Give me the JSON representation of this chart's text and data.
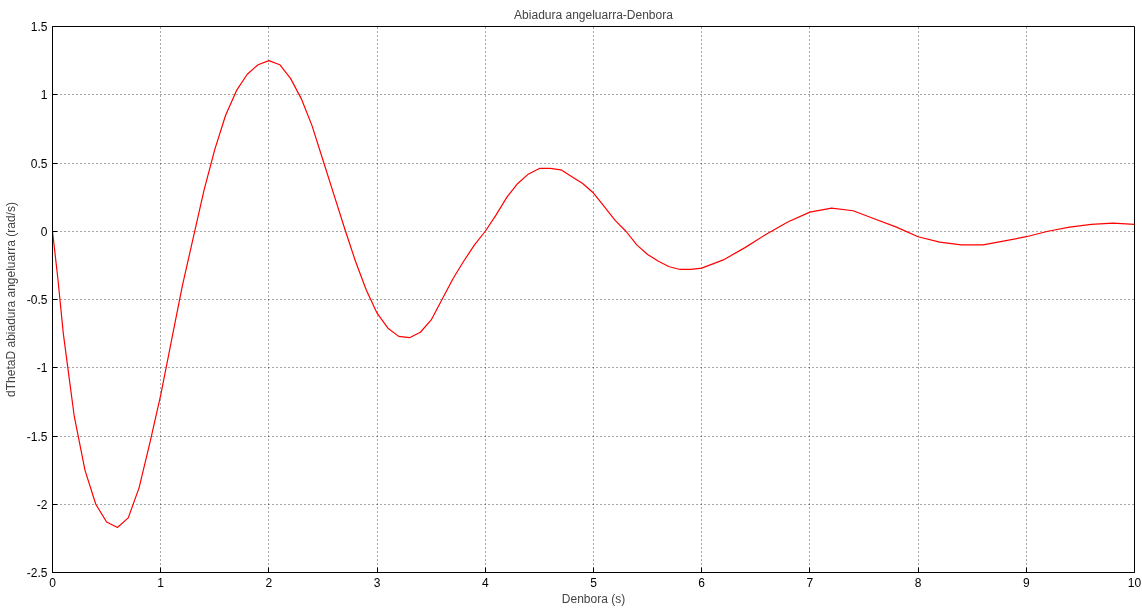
{
  "chart_data": {
    "type": "line",
    "title": "Abiadura angeluarra-Denbora",
    "xlabel": "Denbora (s)",
    "ylabel": "dThetaD abiadura angeluarra (rad/s)",
    "xlim": [
      0,
      10
    ],
    "ylim": [
      -2.5,
      1.5
    ],
    "xticks": [
      0,
      1,
      2,
      3,
      4,
      5,
      6,
      7,
      8,
      9,
      10
    ],
    "yticks": [
      -2.5,
      -2,
      -1.5,
      -1,
      -0.5,
      0,
      0.5,
      1,
      1.5
    ],
    "grid": true,
    "line_style": "solid",
    "marker": "none",
    "series": [
      {
        "color": "#ff0000",
        "x": [
          0,
          0.05,
          0.1,
          0.15,
          0.2,
          0.3,
          0.4,
          0.5,
          0.6,
          0.7,
          0.8,
          0.9,
          1.0,
          1.1,
          1.2,
          1.3,
          1.4,
          1.5,
          1.6,
          1.7,
          1.8,
          1.9,
          2.0,
          2.1,
          2.2,
          2.3,
          2.4,
          2.5,
          2.6,
          2.7,
          2.8,
          2.9,
          3.0,
          3.1,
          3.2,
          3.3,
          3.4,
          3.5,
          3.6,
          3.7,
          3.8,
          3.9,
          4.0,
          4.1,
          4.2,
          4.3,
          4.4,
          4.5,
          4.6,
          4.7,
          4.8,
          4.9,
          5.0,
          5.1,
          5.2,
          5.3,
          5.4,
          5.5,
          5.6,
          5.7,
          5.8,
          5.9,
          6.0,
          6.2,
          6.4,
          6.6,
          6.8,
          7.0,
          7.2,
          7.4,
          7.6,
          7.8,
          8.0,
          8.2,
          8.4,
          8.6,
          8.8,
          9.0,
          9.2,
          9.4,
          9.6,
          9.8,
          10.0
        ],
        "values": [
          0,
          -0.35,
          -0.75,
          -1.05,
          -1.35,
          -1.75,
          -2.0,
          -2.13,
          -2.17,
          -2.1,
          -1.88,
          -1.55,
          -1.2,
          -0.8,
          -0.4,
          -0.05,
          0.3,
          0.6,
          0.85,
          1.03,
          1.15,
          1.22,
          1.25,
          1.22,
          1.12,
          0.97,
          0.77,
          0.52,
          0.27,
          0.02,
          -0.22,
          -0.43,
          -0.6,
          -0.71,
          -0.77,
          -0.78,
          -0.74,
          -0.65,
          -0.5,
          -0.35,
          -0.22,
          -0.1,
          0.0,
          0.12,
          0.25,
          0.35,
          0.42,
          0.46,
          0.46,
          0.45,
          0.4,
          0.35,
          0.28,
          0.18,
          0.08,
          0.0,
          -0.1,
          -0.17,
          -0.22,
          -0.26,
          -0.28,
          -0.28,
          -0.27,
          -0.21,
          -0.12,
          -0.02,
          0.07,
          0.14,
          0.17,
          0.15,
          0.09,
          0.03,
          -0.04,
          -0.08,
          -0.1,
          -0.1,
          -0.07,
          -0.04,
          0.0,
          0.03,
          0.05,
          0.06,
          0.05
        ]
      }
    ]
  }
}
